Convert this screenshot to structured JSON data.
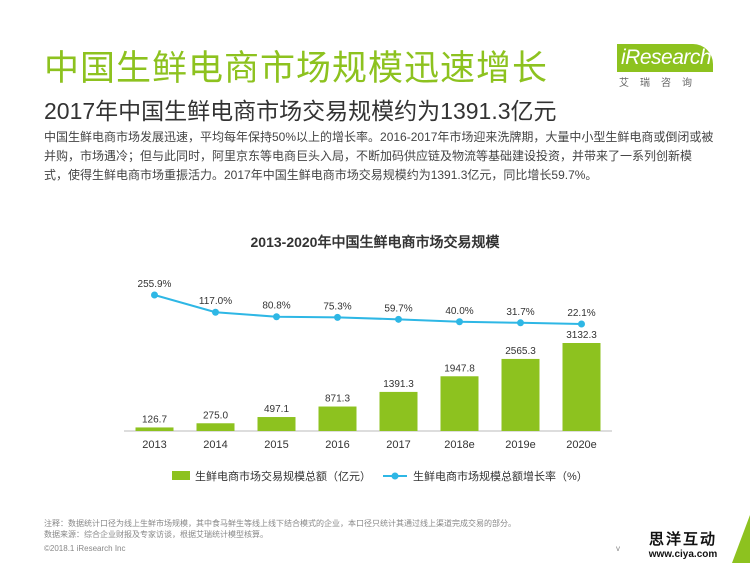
{
  "header": {
    "title": "中国生鲜电商市场规模迅速增长",
    "subtitle": "2017年中国生鲜电商市场交易规模约为1391.3亿元"
  },
  "body_text": "中国生鲜电商市场发展迅速，平均每年保持50%以上的增长率。2016-2017年市场迎来洗牌期，大量中小型生鲜电商或倒闭或被并购，市场遇冷；但与此同时，阿里京东等电商巨头入局，不断加码供应链及物流等基础建设投资，并带来了一系列创新模式，使得生鲜电商市场重振活力。2017年中国生鲜电商市场交易规模约为1391.3亿元，同比增长59.7%。",
  "logo": {
    "name": "iResearch",
    "sub": "艾瑞咨询"
  },
  "colors": {
    "brand_green": "#8dc21f",
    "bar_green": "#8dc21f",
    "line_blue": "#2eb7e5"
  },
  "chart_data": {
    "type": "bar",
    "title": "2013-2020年中国生鲜电商市场交易规模",
    "categories": [
      "2013",
      "2014",
      "2015",
      "2016",
      "2017",
      "2018e",
      "2019e",
      "2020e"
    ],
    "series": [
      {
        "name": "生鲜电商市场交易规模总额（亿元）",
        "type": "bar",
        "values": [
          126.7,
          275.0,
          497.1,
          871.3,
          1391.3,
          1947.8,
          2565.3,
          3132.3
        ],
        "labels": [
          "126.7",
          "275.0",
          "497.1",
          "871.3",
          "1391.3",
          "1947.8",
          "2565.3",
          "3132.3"
        ]
      },
      {
        "name": "生鲜电商市场规模总额增长率（%）",
        "type": "line",
        "values": [
          255.9,
          117.0,
          80.8,
          75.3,
          59.7,
          40.0,
          31.7,
          22.1
        ],
        "labels": [
          "255.9%",
          "117.0%",
          "80.8%",
          "75.3%",
          "59.7%",
          "40.0%",
          "31.7%",
          "22.1%"
        ]
      }
    ],
    "legend": "bottom",
    "grid": false
  },
  "footer": {
    "note1": "注释：数据统计口径为线上生鲜市场规模，其中食马鲜生等线上线下结合模式的企业，本口径只统计其通过线上渠道完成交易的部分。",
    "note2": "数据来源：综合企业财报及专家访谈，根据艾瑞统计模型核算。",
    "copyright": "©2018.1 iResearch Inc",
    "page": "v"
  },
  "watermark": {
    "name": "思洋互动",
    "url": "www.ciya.com"
  }
}
